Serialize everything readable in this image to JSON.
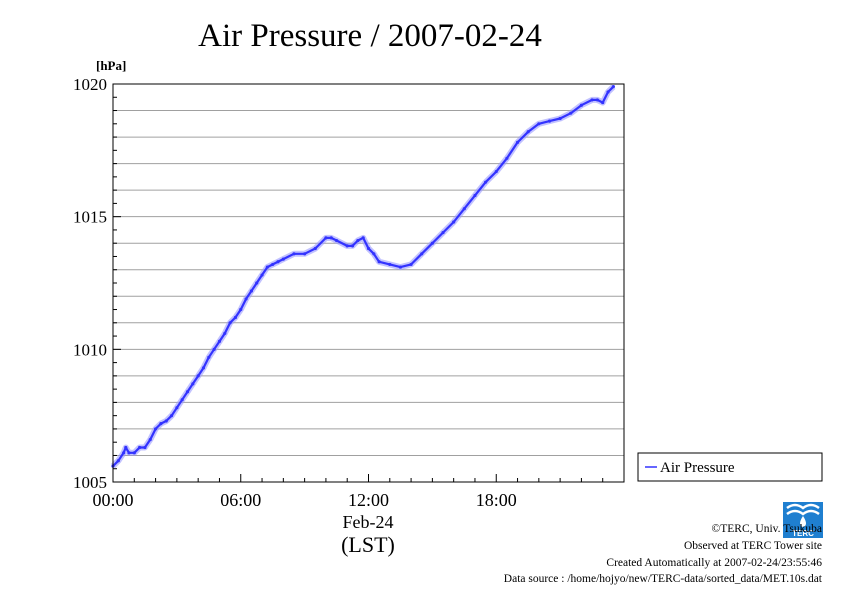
{
  "chart_data": {
    "type": "line",
    "title": "Air Pressure / 2007-02-24",
    "ylabel": "[hPa]",
    "xlabel_date": "Feb-24",
    "xlabel_tz": "(LST)",
    "ylim": [
      1005,
      1020
    ],
    "xlim": [
      0,
      24
    ],
    "y_ticks": [
      1005,
      1010,
      1015,
      1020
    ],
    "y_tick_labels": [
      "1005",
      "1010",
      "1015",
      "1020"
    ],
    "x_ticks": [
      0,
      6,
      12,
      18
    ],
    "x_tick_labels": [
      "00:00",
      "06:00",
      "12:00",
      "18:00"
    ],
    "grid": true,
    "legend": "right",
    "series": [
      {
        "name": "Air Pressure",
        "color": "#3333ff",
        "x": [
          0.0,
          0.25,
          0.5,
          0.6,
          0.75,
          1.0,
          1.25,
          1.5,
          1.75,
          2.0,
          2.25,
          2.5,
          2.75,
          3.0,
          3.25,
          3.5,
          3.75,
          4.0,
          4.25,
          4.5,
          4.75,
          5.0,
          5.25,
          5.5,
          5.75,
          6.0,
          6.25,
          6.5,
          6.75,
          7.0,
          7.25,
          7.5,
          7.75,
          8.0,
          8.5,
          9.0,
          9.5,
          10.0,
          10.25,
          10.5,
          11.0,
          11.25,
          11.5,
          11.75,
          12.0,
          12.25,
          12.5,
          13.0,
          13.5,
          14.0,
          14.5,
          15.0,
          15.5,
          16.0,
          16.5,
          17.0,
          17.5,
          18.0,
          18.5,
          19.0,
          19.5,
          20.0,
          20.5,
          21.0,
          21.5,
          22.0,
          22.5,
          22.75,
          23.0,
          23.25,
          23.5
        ],
        "values": [
          1005.6,
          1005.8,
          1006.1,
          1006.3,
          1006.1,
          1006.1,
          1006.3,
          1006.3,
          1006.6,
          1007.0,
          1007.2,
          1007.3,
          1007.5,
          1007.8,
          1008.1,
          1008.4,
          1008.7,
          1009.0,
          1009.3,
          1009.7,
          1010.0,
          1010.3,
          1010.6,
          1011.0,
          1011.2,
          1011.5,
          1011.9,
          1012.2,
          1012.5,
          1012.8,
          1013.1,
          1013.2,
          1013.3,
          1013.4,
          1013.6,
          1013.6,
          1013.8,
          1014.2,
          1014.2,
          1014.1,
          1013.9,
          1013.9,
          1014.1,
          1014.2,
          1013.8,
          1013.6,
          1013.3,
          1013.2,
          1013.1,
          1013.2,
          1013.6,
          1014.0,
          1014.4,
          1014.8,
          1015.3,
          1015.8,
          1016.3,
          1016.7,
          1017.2,
          1017.8,
          1018.2,
          1018.5,
          1018.6,
          1018.7,
          1018.9,
          1019.2,
          1019.4,
          1019.4,
          1019.3,
          1019.7,
          1019.9
        ]
      }
    ]
  },
  "footer": {
    "copyright": "©TERC, Univ. Tsukuba",
    "observed": "Observed at TERC Tower site",
    "created": "Created Automatically at 2007-02-24/23:55:46",
    "source": "Data source : /home/hojyo/new/TERC-data/sorted_data/MET.10s.dat"
  },
  "logo": {
    "text": "TERC",
    "color": "#1f7fd0"
  }
}
